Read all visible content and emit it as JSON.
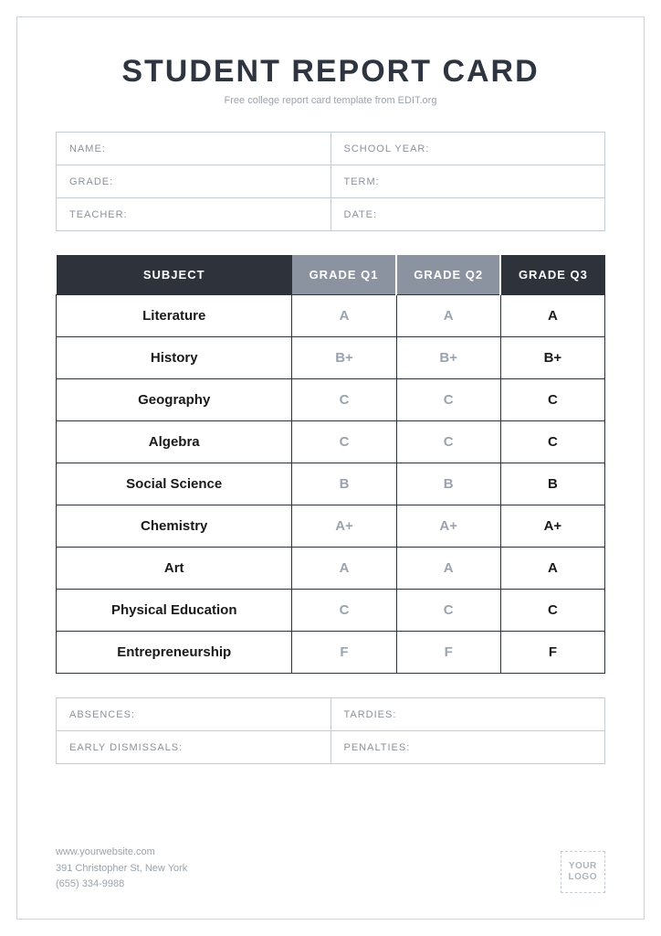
{
  "header": {
    "title": "STUDENT REPORT CARD",
    "subtitle": "Free college report card template from EDIT.org"
  },
  "info": {
    "name_label": "NAME:",
    "school_year_label": "SCHOOL YEAR:",
    "grade_label": "GRADE:",
    "term_label": "TERM:",
    "teacher_label": "TEACHER:",
    "date_label": "DATE:"
  },
  "grades": {
    "headers": {
      "subject": "SUBJECT",
      "q1": "GRADE Q1",
      "q2": "GRADE Q2",
      "q3": "GRADE Q3"
    },
    "rows": [
      {
        "subject": "Literature",
        "q1": "A",
        "q2": "A",
        "q3": "A"
      },
      {
        "subject": "History",
        "q1": "B+",
        "q2": "B+",
        "q3": "B+"
      },
      {
        "subject": "Geography",
        "q1": "C",
        "q2": "C",
        "q3": "C"
      },
      {
        "subject": "Algebra",
        "q1": "C",
        "q2": "C",
        "q3": "C"
      },
      {
        "subject": "Social Science",
        "q1": "B",
        "q2": "B",
        "q3": "B"
      },
      {
        "subject": "Chemistry",
        "q1": "A+",
        "q2": "A+",
        "q3": "A+"
      },
      {
        "subject": "Art",
        "q1": "A",
        "q2": "A",
        "q3": "A"
      },
      {
        "subject": "Physical Education",
        "q1": "C",
        "q2": "C",
        "q3": "C"
      },
      {
        "subject": "Entrepreneurship",
        "q1": "F",
        "q2": "F",
        "q3": "F"
      }
    ]
  },
  "attendance": {
    "absences_label": "ABSENCES:",
    "tardies_label": "TARDIES:",
    "early_dismissals_label": "EARLY DISMISSALS:",
    "penalties_label": "PENALTIES:"
  },
  "footer": {
    "website": "www.yourwebsite.com",
    "address": "391 Christopher St, New York",
    "phone": "(655) 334-9988",
    "logo_line1": "YOUR",
    "logo_line2": "LOGO"
  },
  "colors": {
    "dark_header": "#2d323b",
    "light_header": "#8b92a0",
    "border_light": "#c5cbd2",
    "text_muted": "#9aa3ae",
    "text_dark": "#1a1a1a"
  }
}
